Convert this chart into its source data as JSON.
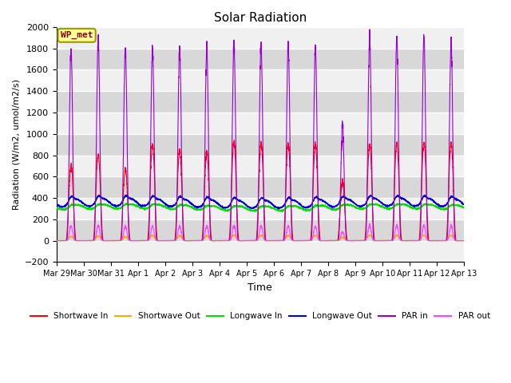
{
  "title": "Solar Radiation",
  "xlabel": "Time",
  "ylabel": "Radiation (W/m2, umol/m2/s)",
  "ylim": [
    -200,
    2000
  ],
  "yticks": [
    -200,
    0,
    200,
    400,
    600,
    800,
    1000,
    1200,
    1400,
    1600,
    1800,
    2000
  ],
  "days": 15,
  "num_points": 4320,
  "legend_labels": [
    "Shortwave In",
    "Shortwave Out",
    "Longwave In",
    "Longwave Out",
    "PAR in",
    "PAR out"
  ],
  "legend_colors": [
    "#ff0000",
    "#ffaa00",
    "#00dd00",
    "#0000dd",
    "#9900cc",
    "#ff44ff"
  ],
  "bg_light": "#f0f0f0",
  "bg_dark": "#d8d8d8",
  "grid_color": "#ffffff",
  "annotation_text": "WP_met",
  "annotation_color": "#880000",
  "annotation_bg": "#ffff99",
  "annotation_border": "#999900",
  "xtick_labels": [
    "Mar 29",
    "Mar 30",
    "Mar 31",
    "Apr 1",
    "Apr 2",
    "Apr 3",
    "Apr 4",
    "Apr 5",
    "Apr 6",
    "Apr 7",
    "Apr 8",
    "Apr 9",
    "Apr 10",
    "Apr 11",
    "Apr 12",
    "Apr 13"
  ],
  "noise_seed": 42,
  "day_start": 0.35,
  "day_end": 0.72,
  "longwave_in_base": 310,
  "longwave_out_base": 350
}
